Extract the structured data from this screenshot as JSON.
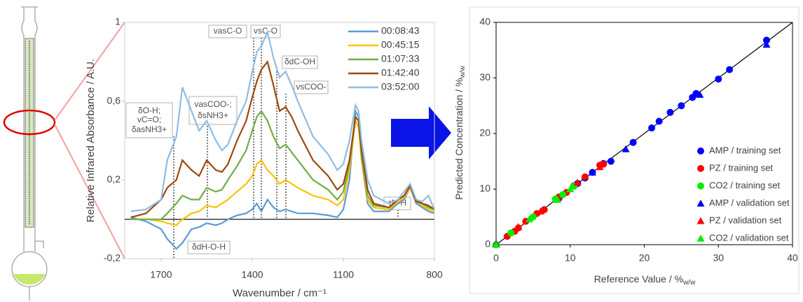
{
  "chart_data": [
    {
      "type": "line",
      "y_label": "Relative Infrared Absorbance / A.U.",
      "x_label": "Wavenumber / cm⁻¹",
      "xlim": [
        1820,
        800
      ],
      "xticks": [
        1700,
        1400,
        1100,
        800
      ],
      "ylim": [
        -0.2,
        1
      ],
      "yticks": [
        {
          "value": -0.2,
          "label": "-0,2"
        },
        {
          "value": 0.2,
          "label": "0,2"
        },
        {
          "value": 0.6,
          "label": "0,6"
        },
        1
      ],
      "annotations": [
        [
          "δO-H;",
          "vC=O;",
          "δasNH3+"
        ],
        [
          "vasCOO-;",
          "δsNH3+"
        ],
        [
          "vasC-O"
        ],
        [
          "vsC-O"
        ],
        [
          "δdC-OH"
        ],
        [
          "vsCOO-"
        ],
        [
          "δdH-O-H"
        ],
        [
          "τN-H"
        ]
      ],
      "x": [
        1800,
        1750,
        1700,
        1680,
        1650,
        1630,
        1600,
        1575,
        1550,
        1520,
        1500,
        1480,
        1450,
        1420,
        1400,
        1385,
        1370,
        1350,
        1330,
        1310,
        1290,
        1270,
        1250,
        1200,
        1150,
        1120,
        1100,
        1080,
        1060,
        1050,
        1040,
        1020,
        1000,
        950,
        920,
        900,
        880,
        860,
        840,
        820,
        800
      ],
      "series": [
        {
          "name": "00:08:43",
          "color": "#5b9bd5",
          "values": [
            0.01,
            -0.01,
            -0.05,
            -0.1,
            -0.15,
            -0.12,
            -0.05,
            -0.04,
            -0.02,
            -0.03,
            -0.02,
            0.0,
            0.02,
            0.03,
            0.05,
            0.08,
            0.04,
            0.1,
            0.06,
            0.04,
            0.05,
            0.04,
            0.03,
            0.03,
            0.02,
            0.01,
            0.05,
            0.2,
            0.55,
            0.52,
            0.3,
            0.08,
            0.04,
            0.04,
            0.08,
            0.1,
            0.16,
            0.08,
            0.06,
            0.04,
            0.03
          ]
        },
        {
          "name": "00:45:15",
          "color": "#ffc000",
          "values": [
            0.0,
            0.0,
            -0.01,
            -0.02,
            -0.03,
            0.0,
            0.03,
            0.04,
            0.07,
            0.06,
            0.08,
            0.1,
            0.14,
            0.18,
            0.22,
            0.28,
            0.3,
            0.25,
            0.22,
            0.18,
            0.2,
            0.18,
            0.16,
            0.12,
            0.1,
            0.07,
            0.1,
            0.25,
            0.5,
            0.47,
            0.3,
            0.1,
            0.06,
            0.05,
            0.09,
            0.11,
            0.16,
            0.09,
            0.07,
            0.05,
            0.04
          ]
        },
        {
          "name": "01:07:33",
          "color": "#70ad47",
          "values": [
            0.0,
            0.0,
            0.0,
            0.03,
            0.08,
            0.12,
            0.1,
            0.1,
            0.16,
            0.14,
            0.15,
            0.2,
            0.27,
            0.35,
            0.45,
            0.52,
            0.55,
            0.5,
            0.42,
            0.36,
            0.38,
            0.34,
            0.3,
            0.2,
            0.15,
            0.1,
            0.14,
            0.28,
            0.52,
            0.5,
            0.32,
            0.12,
            0.07,
            0.06,
            0.1,
            0.12,
            0.17,
            0.1,
            0.08,
            0.06,
            0.05
          ]
        },
        {
          "name": "01:42:40",
          "color": "#9e480e",
          "values": [
            0.01,
            0.03,
            0.1,
            0.16,
            0.2,
            0.3,
            0.25,
            0.22,
            0.3,
            0.25,
            0.24,
            0.28,
            0.4,
            0.5,
            0.62,
            0.7,
            0.76,
            0.8,
            0.68,
            0.55,
            0.57,
            0.52,
            0.45,
            0.3,
            0.22,
            0.15,
            0.18,
            0.3,
            0.52,
            0.5,
            0.35,
            0.15,
            0.08,
            0.06,
            0.1,
            0.12,
            0.17,
            0.09,
            0.08,
            0.07,
            0.05
          ]
        },
        {
          "name": "03:52:00",
          "color": "#8fbce6",
          "values": [
            0.04,
            0.05,
            0.1,
            0.3,
            0.42,
            0.67,
            0.55,
            0.45,
            0.5,
            0.4,
            0.35,
            0.38,
            0.5,
            0.6,
            0.75,
            0.85,
            0.88,
            0.95,
            0.82,
            0.72,
            0.75,
            0.68,
            0.6,
            0.42,
            0.33,
            0.25,
            0.28,
            0.4,
            0.58,
            0.55,
            0.4,
            0.2,
            0.12,
            0.08,
            0.1,
            0.14,
            0.18,
            0.1,
            0.09,
            0.12,
            0.05
          ]
        }
      ]
    },
    {
      "type": "scatter",
      "x_label": "Reference Value / %",
      "x_label_sub": "w/w",
      "y_label": "Predicted Concentration / %",
      "y_label_sub": "w/w",
      "xlim": [
        0,
        40
      ],
      "xticks": [
        0,
        10,
        20,
        30,
        40
      ],
      "ylim": [
        0,
        40
      ],
      "yticks": [
        0,
        10,
        20,
        30,
        40
      ],
      "series": [
        {
          "name": "AMP / training set",
          "color": "#0000ff",
          "marker": "circle",
          "x": [
            8.5,
            11,
            12,
            13,
            14.5,
            15.5,
            18.5,
            21,
            22,
            23.5,
            25,
            26.5,
            27,
            30,
            31.5,
            36.5
          ],
          "values": [
            8.4,
            11,
            12,
            13,
            14.6,
            15,
            18.4,
            21,
            22.2,
            23.8,
            25,
            26.5,
            27.2,
            29.8,
            31.5,
            36.8
          ]
        },
        {
          "name": "PZ / training set",
          "color": "#ff0000",
          "marker": "circle",
          "x": [
            1.5,
            2.5,
            3,
            4,
            5.5,
            6.5,
            8.5,
            9.5,
            10.5,
            12,
            14,
            14.5
          ],
          "values": [
            1.5,
            2.4,
            3,
            4.2,
            5.6,
            6.3,
            8.6,
            9.4,
            10.6,
            12.2,
            14.3,
            14.5
          ]
        },
        {
          "name": "CO2 / training set",
          "color": "#00ee00",
          "marker": "circle",
          "x": [
            0,
            2,
            5,
            8,
            9,
            10.5
          ],
          "values": [
            0,
            2.1,
            5,
            8.2,
            9,
            10.5
          ]
        },
        {
          "name": "AMP / validation set",
          "color": "#0000ff",
          "marker": "triangle",
          "x": [
            0,
            13,
            17.5,
            27.5,
            36.5
          ],
          "values": [
            0.2,
            13,
            17.2,
            27,
            36
          ]
        },
        {
          "name": "PZ / validation set",
          "color": "#ff0000",
          "marker": "triangle",
          "x": [
            0,
            3,
            6,
            11,
            14
          ],
          "values": [
            0.1,
            3.2,
            6,
            11.2,
            14
          ]
        },
        {
          "name": "CO2 / validation set",
          "color": "#00ee00",
          "marker": "triangle",
          "x": [
            0,
            4.5,
            8.3,
            10
          ],
          "values": [
            0,
            4.6,
            8.1,
            10
          ]
        }
      ]
    }
  ]
}
